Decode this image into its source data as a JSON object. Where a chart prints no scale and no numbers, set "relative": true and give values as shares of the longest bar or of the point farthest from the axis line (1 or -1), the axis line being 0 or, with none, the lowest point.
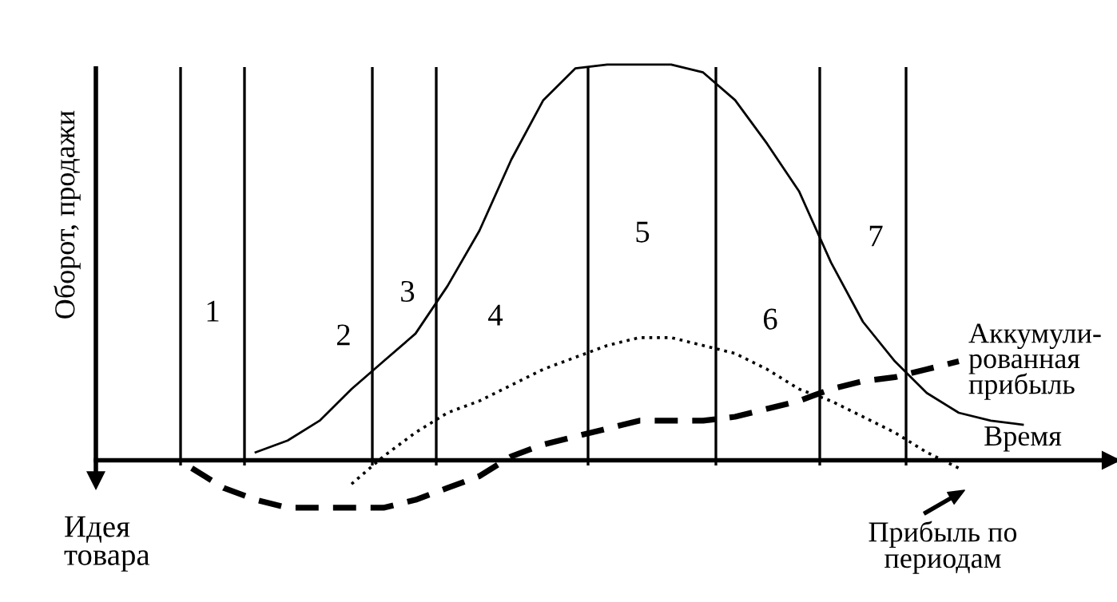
{
  "chart_data": {
    "type": "line",
    "relative": true,
    "ylabel": "Оборот, продажи",
    "xlabel": "Время",
    "categories": [
      null,
      null,
      null,
      null,
      null,
      null,
      null,
      null,
      null,
      null,
      null,
      null,
      null,
      null,
      null,
      null,
      null,
      null,
      null,
      null,
      null,
      null,
      null,
      null,
      null,
      null,
      null,
      null,
      null,
      null,
      null,
      null
    ],
    "series": [
      {
        "color": "#000000",
        "line_style": "solid",
        "values": [
          null,
          null,
          null,
          null,
          null,
          0.02,
          0.05,
          0.1,
          0.18,
          0.25,
          0.32,
          0.44,
          0.58,
          0.76,
          0.91,
          0.99,
          1.0,
          1.0,
          1.0,
          0.98,
          0.91,
          0.8,
          0.68,
          0.5,
          0.35,
          0.25,
          0.17,
          0.12,
          0.1,
          0.09,
          null,
          null
        ]
      },
      {
        "name": "Прибыль по\nпериодам",
        "color": "#000000",
        "line_style": "dotted",
        "values": [
          null,
          null,
          null,
          null,
          null,
          null,
          null,
          null,
          -0.06,
          0.01,
          0.07,
          0.12,
          0.15,
          0.19,
          0.23,
          0.26,
          0.29,
          0.31,
          0.31,
          0.29,
          0.27,
          0.23,
          0.18,
          0.15,
          0.11,
          0.07,
          0.02,
          -0.02,
          null,
          null,
          null,
          null
        ]
      },
      {
        "name": "Аккумули-\nрованная\nприбыль",
        "color": "#000000",
        "line_style": "dashed",
        "values": [
          null,
          null,
          null,
          -0.02,
          -0.07,
          -0.1,
          -0.12,
          -0.12,
          -0.12,
          -0.12,
          -0.1,
          -0.07,
          -0.04,
          0.01,
          0.04,
          0.06,
          0.08,
          0.1,
          0.1,
          0.1,
          0.11,
          0.13,
          0.15,
          0.18,
          0.2,
          0.21,
          0.23,
          0.25,
          null,
          null,
          null,
          null
        ]
      }
    ],
    "annotations": [
      "1",
      "2",
      "3",
      "4",
      "5",
      "6",
      "7",
      "Идея\nтовара"
    ]
  }
}
